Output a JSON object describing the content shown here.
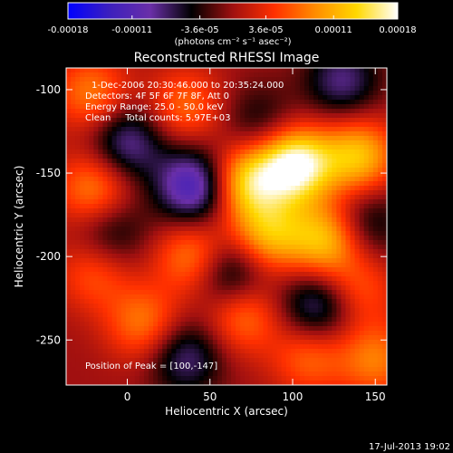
{
  "chart_data": {
    "type": "heatmap",
    "title": "Reconstructed RHESSI Image",
    "xlabel": "Heliocentric X (arcsec)",
    "ylabel": "Heliocentric Y (arcsec)",
    "xlim": [
      -37,
      157
    ],
    "ylim": [
      -277,
      -87
    ],
    "x_ticks": [
      0,
      50,
      100,
      150
    ],
    "y_ticks": [
      -100,
      -150,
      -200,
      -250
    ],
    "colorbar": {
      "range": [
        -0.00018,
        0.00018
      ],
      "tick_values": [
        -0.00018,
        -0.00011,
        -3.6e-05,
        3.6e-05,
        0.00011,
        0.00018
      ],
      "tick_labels": [
        "-0.00018",
        "-0.00011",
        "-3.6e-05",
        "3.6e-05",
        "0.00011",
        "0.00018"
      ],
      "unit_label": "(photons cm⁻² s⁻¹ asec⁻²)",
      "palette": [
        "#0000ff",
        "#3c1fbe",
        "#6a2fa8",
        "#000000",
        "#a01010",
        "#ff3000",
        "#ff8c00",
        "#ffd800",
        "#ffffff"
      ]
    },
    "annotations": {
      "time": "1-Dec-2006 20:30:46.000 to 20:35:24.000",
      "detectors": "Detectors: 4F 5F 6F 7F 8F, Att 0",
      "energy": "Energy Range: 25.0 - 50.0 keV",
      "clean": "Clean     Total counts: 5.97E+03",
      "peak": "Position of Peak = [100,-147]"
    },
    "peak": [
      100,
      -147
    ],
    "image_sources": [
      {
        "x": 102,
        "y": -145,
        "v": 0.00018
      },
      {
        "x": 72,
        "y": -155,
        "v": 0.00013
      },
      {
        "x": 140,
        "y": -140,
        "v": 0.00012
      },
      {
        "x": 120,
        "y": -190,
        "v": 0.00012
      },
      {
        "x": 85,
        "y": -187,
        "v": 0.00011
      },
      {
        "x": -20,
        "y": -160,
        "v": 9e-05
      },
      {
        "x": -22,
        "y": -102,
        "v": 8e-05
      },
      {
        "x": 35,
        "y": -110,
        "v": 7e-05
      },
      {
        "x": 40,
        "y": -200,
        "v": 9e-05
      },
      {
        "x": 10,
        "y": -240,
        "v": 8e-05
      },
      {
        "x": 70,
        "y": -235,
        "v": 8e-05
      },
      {
        "x": 150,
        "y": -262,
        "v": 8e-05
      },
      {
        "x": 110,
        "y": -260,
        "v": 7e-05
      },
      {
        "x": -20,
        "y": -210,
        "v": 6e-05
      },
      {
        "x": 140,
        "y": -220,
        "v": 6e-05
      },
      {
        "x": 40,
        "y": -158,
        "v": -0.00013
      },
      {
        "x": 0,
        "y": -132,
        "v": -9e-05
      },
      {
        "x": 62,
        "y": -210,
        "v": -9e-05
      },
      {
        "x": 130,
        "y": -95,
        "v": -8e-05
      },
      {
        "x": 115,
        "y": -230,
        "v": -9e-05
      },
      {
        "x": 35,
        "y": -260,
        "v": -8e-05
      },
      {
        "x": -10,
        "y": -185,
        "v": -6e-05
      },
      {
        "x": 145,
        "y": -180,
        "v": -6e-05
      },
      {
        "x": 80,
        "y": -120,
        "v": -5e-05
      }
    ]
  },
  "footer": {
    "date": "17-Jul-2013 19:02"
  }
}
